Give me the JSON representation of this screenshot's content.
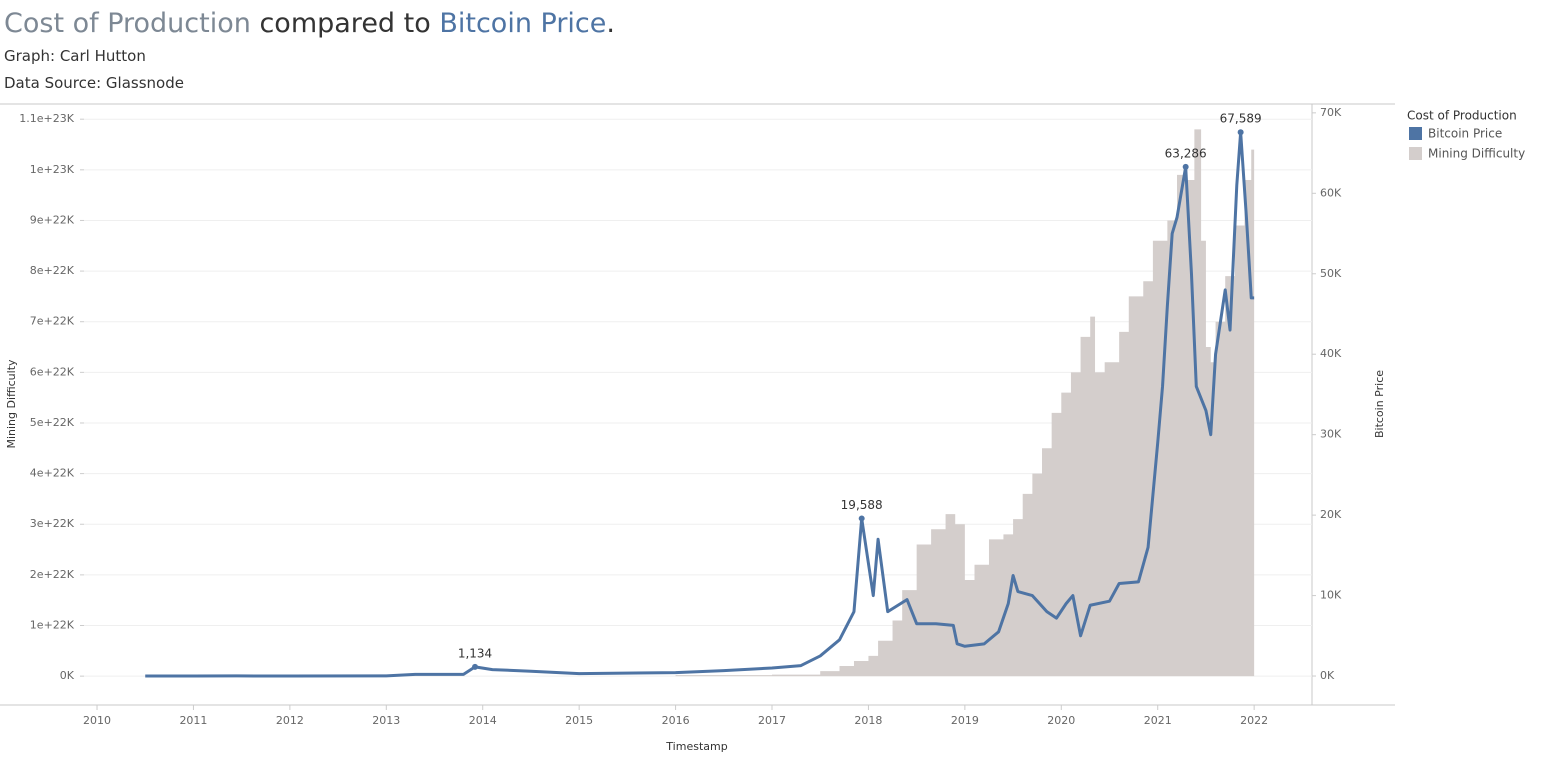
{
  "title_parts": [
    {
      "text": "Cost of Production",
      "color": "#7d8894"
    },
    {
      "text": " compared to ",
      "color": "#333333"
    },
    {
      "text": "Bitcoin Price",
      "color": "#4e74a4"
    },
    {
      "text": ".",
      "color": "#333333"
    }
  ],
  "subtitles": [
    "Graph: Carl Hutton",
    "Data Source: Glassnode"
  ],
  "chart_data": {
    "type": "dual-axis-area-line",
    "x_label": "Timestamp",
    "y_label": "Mining Difficulty",
    "y2_label": "Bitcoin Price",
    "legend_title": "Cost of Production",
    "legend": "right",
    "grid": true,
    "xlim": [
      2009.865,
      2022.6
    ],
    "xticks": [
      2010,
      2011,
      2012,
      2013,
      2014,
      2015,
      2016,
      2017,
      2018,
      2019,
      2020,
      2021,
      2022
    ],
    "ylim": [
      -5.7e+21,
      1.13e+23
    ],
    "yticks": [
      {
        "value": 0,
        "label": "0K"
      },
      {
        "value": 1e+22,
        "label": "1e+22K"
      },
      {
        "value": 2e+22,
        "label": "2e+22K"
      },
      {
        "value": 3e+22,
        "label": "3e+22K"
      },
      {
        "value": 4e+22,
        "label": "4e+22K"
      },
      {
        "value": 5e+22,
        "label": "5e+22K"
      },
      {
        "value": 6e+22,
        "label": "6e+22K"
      },
      {
        "value": 7e+22,
        "label": "7e+22K"
      },
      {
        "value": 8e+22,
        "label": "8e+22K"
      },
      {
        "value": 9e+22,
        "label": "9e+22K"
      },
      {
        "value": 1e+23,
        "label": "1e+23K"
      },
      {
        "value": 1.1e+23,
        "label": "1.1e+23K"
      }
    ],
    "y2lim": [
      -3600,
      71100
    ],
    "y2ticks": [
      {
        "value": 0,
        "label": "0K"
      },
      {
        "value": 10000,
        "label": "10K"
      },
      {
        "value": 20000,
        "label": "20K"
      },
      {
        "value": 30000,
        "label": "30K"
      },
      {
        "value": 40000,
        "label": "40K"
      },
      {
        "value": 50000,
        "label": "50K"
      },
      {
        "value": 60000,
        "label": "60K"
      },
      {
        "value": 70000,
        "label": "70K"
      }
    ],
    "series": [
      {
        "name": "Bitcoin Price",
        "color": "#4e74a4",
        "axis": "y2",
        "x": [
          2010.5,
          2011.0,
          2011.45,
          2012.0,
          2013.0,
          2013.3,
          2013.8,
          2013.92,
          2014.1,
          2014.5,
          2015.0,
          2016.0,
          2016.5,
          2017.0,
          2017.3,
          2017.5,
          2017.7,
          2017.85,
          2017.93,
          2018.05,
          2018.1,
          2018.2,
          2018.4,
          2018.5,
          2018.7,
          2018.88,
          2018.92,
          2019.0,
          2019.2,
          2019.35,
          2019.45,
          2019.5,
          2019.55,
          2019.7,
          2019.85,
          2019.95,
          2020.05,
          2020.12,
          2020.2,
          2020.3,
          2020.5,
          2020.6,
          2020.8,
          2020.9,
          2021.0,
          2021.05,
          2021.1,
          2021.15,
          2021.2,
          2021.29,
          2021.35,
          2021.4,
          2021.5,
          2021.55,
          2021.6,
          2021.7,
          2021.75,
          2021.82,
          2021.86,
          2021.92,
          2021.97,
          2022.0
        ],
        "values": [
          0.07,
          0.3,
          15,
          5,
          13,
          200,
          200,
          1134,
          800,
          600,
          300,
          430,
          670,
          1000,
          1300,
          2500,
          4500,
          8000,
          19588,
          10000,
          17000,
          8000,
          9500,
          6500,
          6500,
          6300,
          4000,
          3700,
          4000,
          5500,
          9000,
          12500,
          10500,
          10000,
          8000,
          7200,
          9000,
          10000,
          5000,
          8800,
          9300,
          11500,
          11700,
          16000,
          29000,
          36000,
          46000,
          55000,
          57000,
          63286,
          50000,
          36000,
          33000,
          30000,
          40000,
          48000,
          43000,
          61000,
          67589,
          57000,
          47000,
          47000
        ]
      },
      {
        "name": "Mining Difficulty",
        "color": "#d4cecc",
        "axis": "y",
        "x": [
          2010.5,
          2016.0,
          2017.0,
          2017.5,
          2017.7,
          2017.85,
          2018.0,
          2018.1,
          2018.25,
          2018.35,
          2018.5,
          2018.65,
          2018.8,
          2018.9,
          2019.0,
          2019.1,
          2019.25,
          2019.4,
          2019.5,
          2019.6,
          2019.7,
          2019.8,
          2019.9,
          2020.0,
          2020.1,
          2020.2,
          2020.3,
          2020.35,
          2020.45,
          2020.6,
          2020.7,
          2020.85,
          2020.95,
          2021.1,
          2021.2,
          2021.3,
          2021.38,
          2021.45,
          2021.5,
          2021.55,
          2021.6,
          2021.7,
          2021.8,
          2021.9,
          2021.97,
          2022.0
        ],
        "values": [
          0,
          2e+20,
          3e+20,
          1e+21,
          2e+21,
          3e+21,
          4e+21,
          7e+21,
          1.1e+22,
          1.7e+22,
          2.6e+22,
          2.9e+22,
          3.2e+22,
          3e+22,
          1.9e+22,
          2.2e+22,
          2.7e+22,
          2.8e+22,
          3.1e+22,
          3.6e+22,
          4e+22,
          4.5e+22,
          5.2e+22,
          5.6e+22,
          6e+22,
          6.7e+22,
          7.1e+22,
          6e+22,
          6.2e+22,
          6.8e+22,
          7.5e+22,
          7.8e+22,
          8.6e+22,
          9e+22,
          9.9e+22,
          9.8e+22,
          1.08e+23,
          8.6e+22,
          6.5e+22,
          6.2e+22,
          7e+22,
          7.9e+22,
          8.9e+22,
          9.8e+22,
          1.04e+23,
          1.04e+23
        ]
      }
    ],
    "annotations": [
      {
        "x": 2013.92,
        "y": 1134,
        "label": "1,134"
      },
      {
        "x": 2017.93,
        "y": 19588,
        "label": "19,588"
      },
      {
        "x": 2021.29,
        "y": 63286,
        "label": "63,286"
      },
      {
        "x": 2021.86,
        "y": 67589,
        "label": "67,589"
      }
    ]
  }
}
